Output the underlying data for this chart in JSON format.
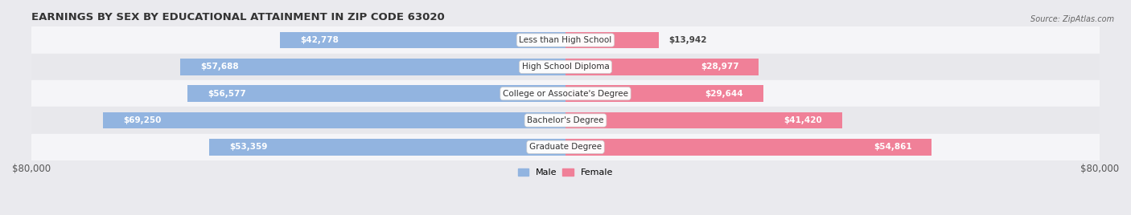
{
  "title": "EARNINGS BY SEX BY EDUCATIONAL ATTAINMENT IN ZIP CODE 63020",
  "source": "Source: ZipAtlas.com",
  "categories": [
    "Less than High School",
    "High School Diploma",
    "College or Associate's Degree",
    "Bachelor's Degree",
    "Graduate Degree"
  ],
  "male_values": [
    42778,
    57688,
    56577,
    69250,
    53359
  ],
  "female_values": [
    13942,
    28977,
    29644,
    41420,
    54861
  ],
  "male_color": "#92B4E0",
  "female_color": "#F08098",
  "max_value": 80000,
  "bar_height": 0.62,
  "background_color": "#EAEAEE",
  "row_bg_light": "#F5F5F8",
  "row_bg_dark": "#E8E8EC",
  "axis_label_fontsize": 8.5,
  "title_fontsize": 9.5,
  "bar_label_fontsize": 7.5,
  "category_fontsize": 7.5
}
